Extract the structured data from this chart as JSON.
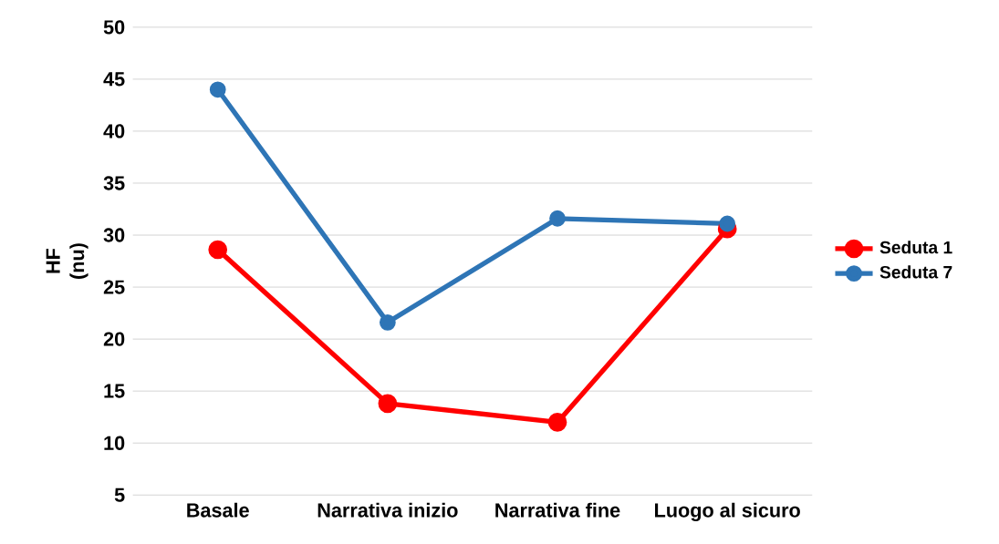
{
  "chart_data": {
    "type": "line",
    "ylabel": "HF (nu)",
    "categories": [
      "Basale",
      "Narrativa inizio",
      "Narrativa fine",
      "Luogo al sicuro"
    ],
    "series": [
      {
        "name": "Seduta 1",
        "color": "#ff0000",
        "values": [
          28.6,
          13.8,
          12.0,
          30.6
        ]
      },
      {
        "name": "Seduta 7",
        "color": "#2e75b6",
        "values": [
          44.0,
          21.6,
          31.6,
          31.1
        ]
      }
    ],
    "ylim": [
      5,
      50
    ],
    "yticks": [
      5,
      10,
      15,
      20,
      25,
      30,
      35,
      40,
      45,
      50
    ],
    "grid": "y",
    "legend": "right",
    "marker": "circle",
    "line_style": "solid"
  }
}
